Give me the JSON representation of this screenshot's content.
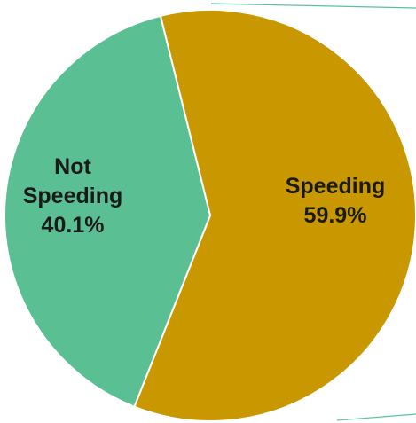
{
  "chart_data": {
    "type": "pie",
    "title": "",
    "slices": [
      {
        "label_lines": [
          "Not",
          "Speeding",
          "40.1%"
        ],
        "category": "Not Speeding",
        "value": 40.1,
        "value_label": "40.1%",
        "color": "#5bbf94"
      },
      {
        "label_lines": [
          "Speeding",
          "59.9%"
        ],
        "category": "Speeding",
        "value": 59.9,
        "value_label": "59.9%",
        "color": "#c99700"
      }
    ],
    "slice_border_color": "#ffffff",
    "legend": "none",
    "labels_inside": true
  }
}
